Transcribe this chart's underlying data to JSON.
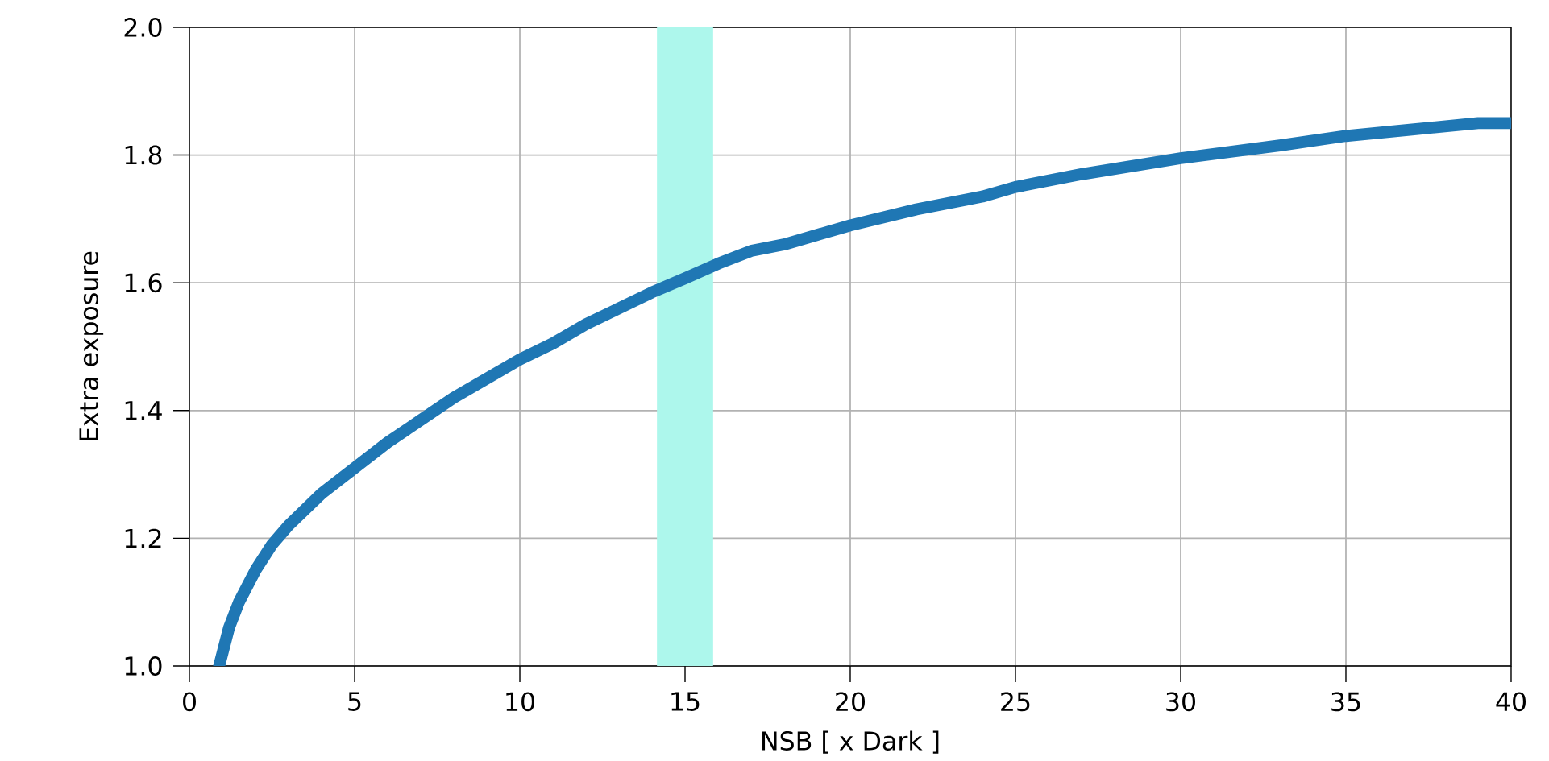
{
  "chart_data": {
    "type": "line",
    "xlabel": "NSB [ x Dark ]",
    "ylabel": "Extra exposure",
    "x": [
      0.9,
      1.0,
      1.2,
      1.5,
      2,
      2.5,
      3,
      4,
      5,
      6,
      7,
      8,
      9,
      10,
      11,
      12,
      13,
      14,
      15,
      16,
      17,
      18,
      19,
      20,
      22,
      24,
      25,
      27,
      30,
      33,
      35,
      37,
      39,
      40
    ],
    "series": [
      {
        "color": "#1f77b4",
        "values": [
          1.0,
          1.02,
          1.06,
          1.1,
          1.15,
          1.19,
          1.22,
          1.27,
          1.31,
          1.35,
          1.385,
          1.42,
          1.45,
          1.48,
          1.505,
          1.535,
          1.56,
          1.585,
          1.607,
          1.63,
          1.65,
          1.66,
          1.675,
          1.69,
          1.715,
          1.735,
          1.75,
          1.77,
          1.795,
          1.815,
          1.83,
          1.84,
          1.85,
          1.85
        ]
      }
    ],
    "xlim": [
      0,
      40
    ],
    "ylim": [
      1.0,
      2.0
    ],
    "xticks": [
      0,
      5,
      10,
      15,
      20,
      25,
      30,
      35,
      40
    ],
    "yticks": [
      {
        "value": 1.0,
        "label": "1.0"
      },
      {
        "value": 1.2,
        "label": "1.2"
      },
      {
        "value": 1.4,
        "label": "1.4"
      },
      {
        "value": 1.6,
        "label": "1.6"
      },
      {
        "value": 1.8,
        "label": "1.8"
      },
      {
        "value": 2.0,
        "label": "2.0"
      }
    ],
    "bands": [
      {
        "axis": "x",
        "from": 14.15,
        "to": 15.85,
        "color": "#adf7ec"
      }
    ],
    "grid": true,
    "marker": "none",
    "line_style": "solid"
  }
}
